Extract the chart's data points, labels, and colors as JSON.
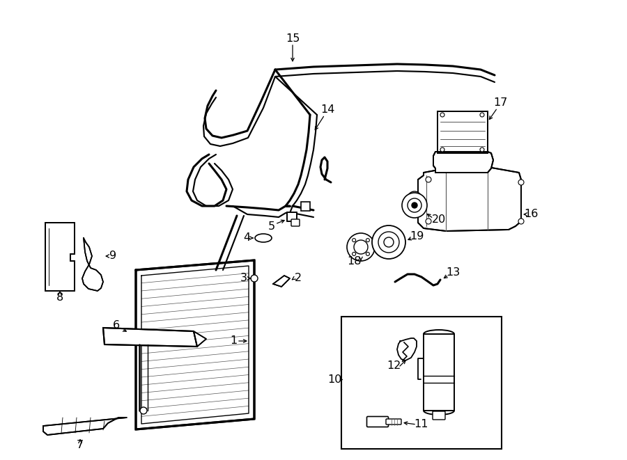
{
  "bg_color": "#ffffff",
  "lc": "#000000",
  "fig_w": 9.0,
  "fig_h": 6.61,
  "dpi": 100,
  "lw": 1.4,
  "fs": 11.5
}
